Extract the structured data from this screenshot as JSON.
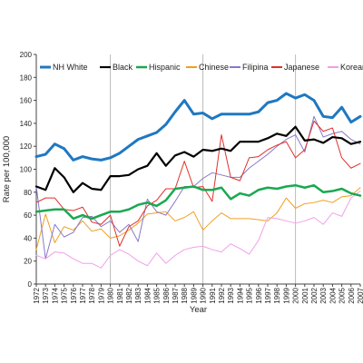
{
  "chart_data": {
    "type": "line",
    "title": "",
    "xlabel": "Year",
    "ylabel": "Rate per 100,000",
    "ylim": [
      0,
      200
    ],
    "yticks": [
      0,
      20,
      40,
      60,
      80,
      100,
      120,
      140,
      160,
      180,
      200
    ],
    "x": [
      1972,
      1973,
      1974,
      1975,
      1976,
      1977,
      1978,
      1979,
      1980,
      1981,
      1982,
      1983,
      1984,
      1985,
      1986,
      1987,
      1988,
      1989,
      1990,
      1991,
      1992,
      1993,
      1994,
      1995,
      1996,
      1997,
      1998,
      1999,
      2000,
      2001,
      2002,
      2003,
      2004,
      2005,
      2006,
      2007
    ],
    "x_tick_labels": [
      "1972",
      "1973",
      "1974",
      "1975",
      "1976",
      "1977",
      "1978",
      "1979",
      "1980",
      "1981",
      "1982",
      "1983",
      "1984",
      "1985",
      "1986",
      "1987",
      "1988",
      "1989",
      "1990",
      "1991",
      "1992",
      "1993",
      "1994",
      "1995",
      "1996",
      "1997",
      "1998",
      "1999",
      "2000",
      "2001",
      "2002",
      "2003",
      "2004",
      "2005",
      "2006",
      "2007"
    ],
    "reference_lines_x": [
      1980,
      1990,
      2000
    ],
    "grid": false,
    "legend_position": "top",
    "series": [
      {
        "name": "NH White",
        "color": "#1f78c1",
        "width": 3,
        "values": [
          111,
          113,
          122,
          118,
          108,
          111,
          109,
          108,
          110,
          114,
          120,
          126,
          129,
          132,
          139,
          150,
          160,
          148,
          149,
          144,
          148,
          148,
          148,
          148,
          150,
          158,
          160,
          166,
          162,
          165,
          160,
          146,
          145,
          154,
          141,
          146
        ]
      },
      {
        "name": "Black",
        "color": "#000000",
        "width": 2.2,
        "values": [
          85,
          82,
          101,
          93,
          80,
          88,
          83,
          82,
          94,
          94,
          95,
          100,
          103,
          114,
          103,
          112,
          115,
          111,
          117,
          116,
          118,
          116,
          124,
          124,
          124,
          127,
          131,
          129,
          137,
          125,
          126,
          123,
          128,
          127,
          122,
          124
        ]
      },
      {
        "name": "Hispanic",
        "color": "#1aa84f",
        "width": 2.5,
        "values": [
          63,
          64,
          65,
          65,
          57,
          60,
          57,
          60,
          63,
          63,
          65,
          69,
          71,
          68,
          73,
          83,
          84,
          85,
          82,
          82,
          84,
          74,
          79,
          77,
          82,
          84,
          83,
          85,
          86,
          84,
          86,
          80,
          81,
          83,
          79,
          77
        ]
      },
      {
        "name": "Chinese",
        "color": "#f0a020",
        "width": 1,
        "values": [
          30,
          61,
          36,
          50,
          47,
          55,
          46,
          48,
          40,
          42,
          47,
          53,
          61,
          62,
          63,
          55,
          58,
          63,
          47,
          55,
          62,
          57,
          57,
          57,
          56,
          55,
          62,
          75,
          66,
          70,
          71,
          73,
          71,
          76,
          77,
          84
        ]
      },
      {
        "name": "Filipina",
        "color": "#8878c8",
        "width": 1,
        "values": [
          85,
          22,
          52,
          41,
          45,
          58,
          59,
          50,
          55,
          45,
          52,
          37,
          74,
          63,
          60,
          72,
          85,
          85,
          92,
          97,
          95,
          93,
          93,
          101,
          107,
          113,
          120,
          126,
          130,
          115,
          146,
          128,
          131,
          133,
          126,
          122
        ]
      },
      {
        "name": "Japanese",
        "color": "#e0302a",
        "width": 1,
        "values": [
          71,
          75,
          75,
          65,
          64,
          67,
          54,
          52,
          60,
          33,
          50,
          55,
          68,
          73,
          83,
          83,
          107,
          84,
          85,
          72,
          130,
          93,
          90,
          110,
          111,
          117,
          121,
          124,
          110,
          117,
          142,
          133,
          136,
          110,
          101,
          105
        ]
      },
      {
        "name": "Korean",
        "color": "#f0a0e8",
        "width": 1,
        "values": [
          25,
          22,
          28,
          27,
          22,
          18,
          18,
          14,
          25,
          30,
          26,
          20,
          16,
          27,
          18,
          25,
          30,
          32,
          33,
          30,
          28,
          35,
          31,
          26,
          38,
          58,
          57,
          55,
          53,
          55,
          58,
          52,
          62,
          59,
          75,
          81
        ]
      }
    ]
  }
}
